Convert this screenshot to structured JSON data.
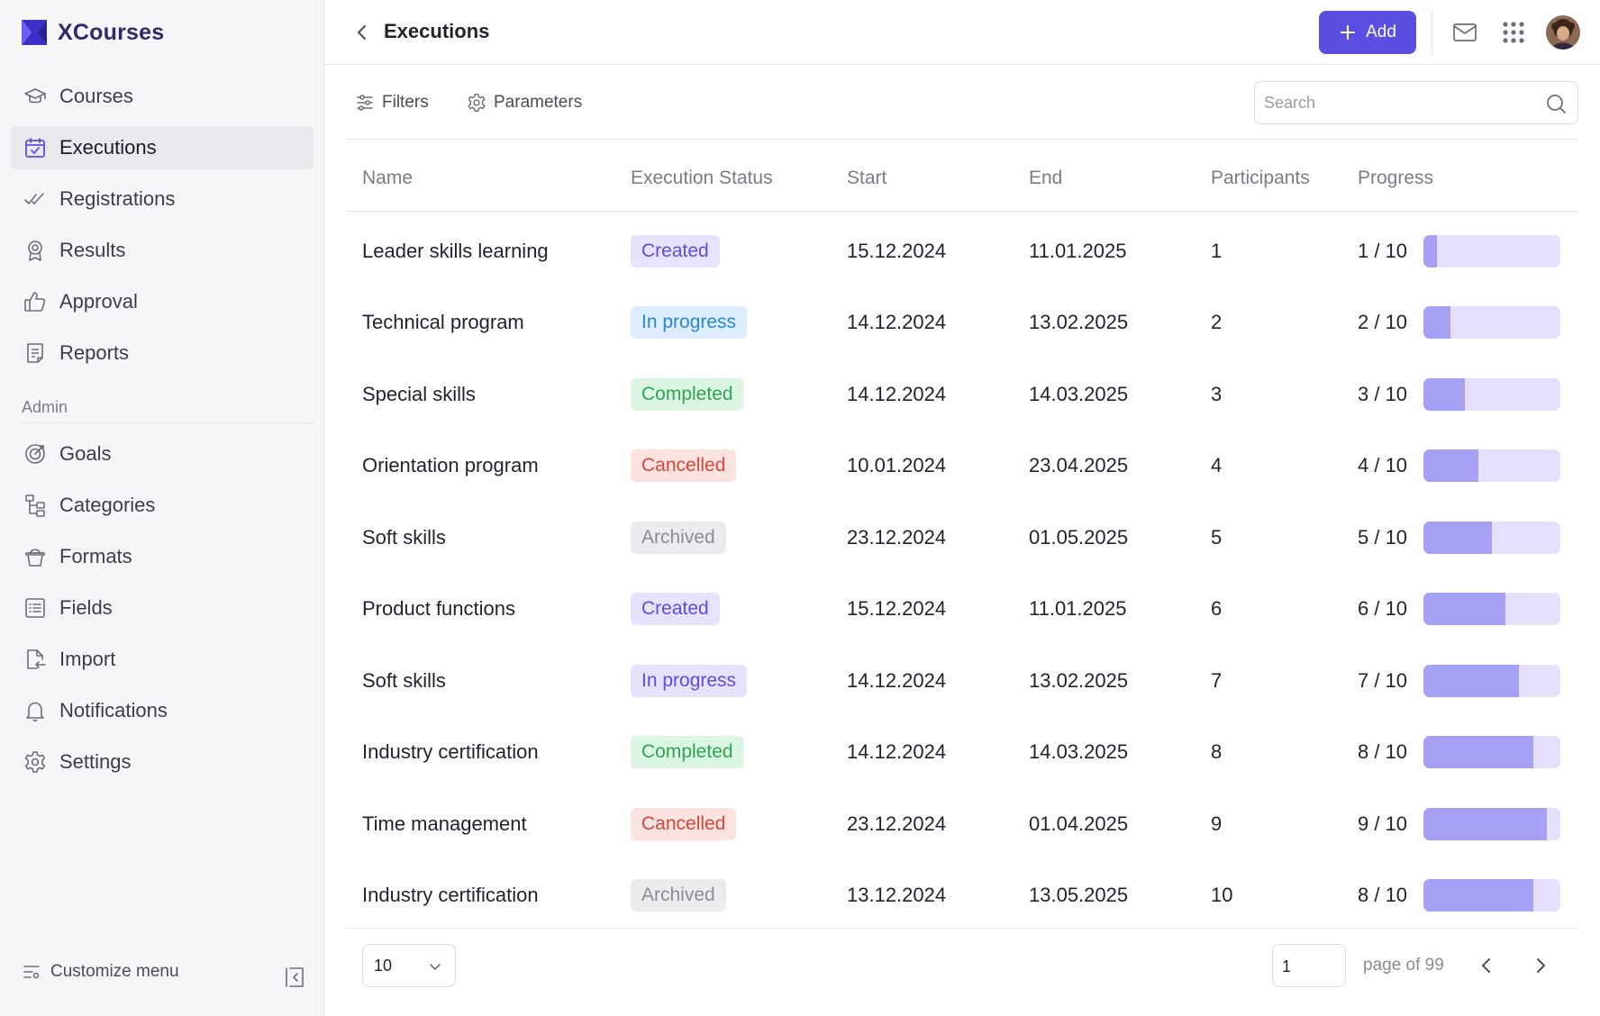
{
  "app": {
    "name": "XCourses",
    "brand_color": "#3b2fc9"
  },
  "sidebar": {
    "items": [
      {
        "label": "Courses",
        "icon": "graduation-cap-icon"
      },
      {
        "label": "Executions",
        "icon": "calendar-check-icon",
        "active": true
      },
      {
        "label": "Registrations",
        "icon": "double-check-icon"
      },
      {
        "label": "Results",
        "icon": "award-ribbon-icon"
      },
      {
        "label": "Approval",
        "icon": "thumbs-up-icon"
      },
      {
        "label": "Reports",
        "icon": "report-document-icon"
      }
    ],
    "admin_label": "Admin",
    "admin_items": [
      {
        "label": "Goals",
        "icon": "target-icon"
      },
      {
        "label": "Categories",
        "icon": "hierarchy-icon"
      },
      {
        "label": "Formats",
        "icon": "basket-icon"
      },
      {
        "label": "Fields",
        "icon": "list-icon"
      },
      {
        "label": "Import",
        "icon": "file-import-icon"
      },
      {
        "label": "Notifications",
        "icon": "bell-icon"
      },
      {
        "label": "Settings",
        "icon": "gear-icon"
      }
    ],
    "customize_label": "Customize menu"
  },
  "header": {
    "title": "Executions",
    "add_label": "Add",
    "accent": "#5a4fe0"
  },
  "toolbar": {
    "filters_label": "Filters",
    "parameters_label": "Parameters",
    "search_placeholder": "Search"
  },
  "table": {
    "columns": [
      "Name",
      "Execution Status",
      "Start",
      "End",
      "Participants",
      "Progress"
    ],
    "rows": [
      {
        "name": "Leader skills learning",
        "status": "Created",
        "status_style": "created",
        "start": "15.12.2024",
        "end": "11.01.2025",
        "participants": "1",
        "progress_text": "1 / 10",
        "progress": 0.1
      },
      {
        "name": "Technical program",
        "status": "In progress",
        "status_style": "progress-blue",
        "start": "14.12.2024",
        "end": "13.02.2025",
        "participants": "2",
        "progress_text": "2 / 10",
        "progress": 0.2
      },
      {
        "name": "Special skills",
        "status": "Completed",
        "status_style": "completed",
        "start": "14.12.2024",
        "end": "14.03.2025",
        "participants": "3",
        "progress_text": "3 / 10",
        "progress": 0.3
      },
      {
        "name": "Orientation program",
        "status": "Cancelled",
        "status_style": "cancelled",
        "start": "10.01.2024",
        "end": "23.04.2025",
        "participants": "4",
        "progress_text": "4 / 10",
        "progress": 0.4
      },
      {
        "name": "Soft skills",
        "status": "Archived",
        "status_style": "archived",
        "start": "23.12.2024",
        "end": "01.05.2025",
        "participants": "5",
        "progress_text": "5 / 10",
        "progress": 0.5
      },
      {
        "name": "Product functions",
        "status": "Created",
        "status_style": "created",
        "start": "15.12.2024",
        "end": "11.01.2025",
        "participants": "6",
        "progress_text": "6 / 10",
        "progress": 0.6
      },
      {
        "name": "Soft skills",
        "status": "In progress",
        "status_style": "progress-purple",
        "start": "14.12.2024",
        "end": "13.02.2025",
        "participants": "7",
        "progress_text": "7 / 10",
        "progress": 0.7
      },
      {
        "name": "Industry certification",
        "status": "Completed",
        "status_style": "completed",
        "start": "14.12.2024",
        "end": "14.03.2025",
        "participants": "8",
        "progress_text": "8 / 10",
        "progress": 0.8
      },
      {
        "name": "Time management",
        "status": "Cancelled",
        "status_style": "cancelled",
        "start": "23.12.2024",
        "end": "01.04.2025",
        "participants": "9",
        "progress_text": "9 / 10",
        "progress": 0.9
      },
      {
        "name": "Industry certification",
        "status": "Archived",
        "status_style": "archived",
        "start": "13.12.2024",
        "end": "13.05.2025",
        "participants": "10",
        "progress_text": "8 / 10",
        "progress": 0.8
      }
    ]
  },
  "pagination": {
    "page_size": "10",
    "current_page": "1",
    "page_of_label": "page of 99"
  }
}
